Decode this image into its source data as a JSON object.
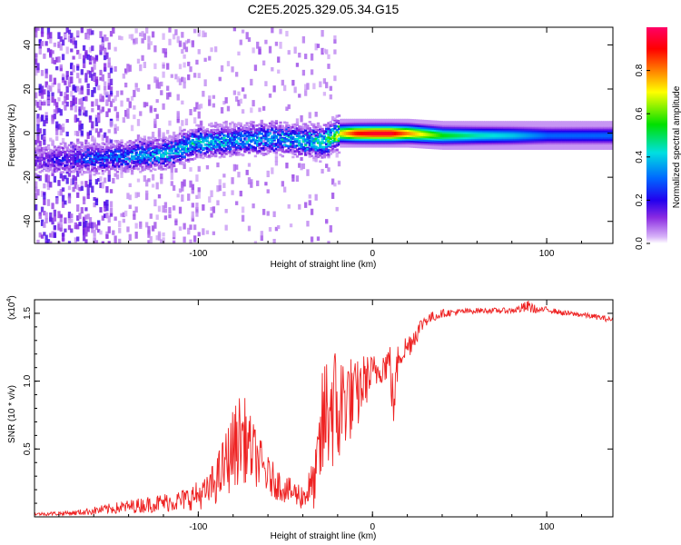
{
  "title": "C2E5.2025.329.05.34.G15",
  "colors": {
    "snr_line": "#ee2222",
    "frame": "#000000",
    "colorbar_stops": [
      "#ffffff",
      "#d8b4f8",
      "#8a2be2",
      "#2200ee",
      "#0066ff",
      "#00e0e0",
      "#00e000",
      "#ffff00",
      "#ff6600",
      "#ff0000",
      "#ff0066"
    ]
  },
  "chart_data": [
    {
      "type": "heatmap",
      "name": "spectrogram",
      "title": "C2E5.2025.329.05.34.G15",
      "xlabel": "Height of straight line (km)",
      "ylabel": "Frequency (Hz)",
      "xlim": [
        -194,
        138
      ],
      "ylim": [
        -50,
        48
      ],
      "xticks": [
        -100,
        0,
        100
      ],
      "xtick_labels": [
        "-100",
        "0",
        "100"
      ],
      "yticks": [
        -40,
        -20,
        0,
        20,
        40
      ],
      "ytick_labels": [
        "-40",
        "-20",
        "0",
        "20",
        "40"
      ],
      "ridge": {
        "description_x": [
          -194,
          -160,
          -140,
          -120,
          -100,
          -80,
          -60,
          -40,
          -30,
          -20,
          -10,
          0,
          10,
          20,
          40,
          60,
          80,
          100,
          120,
          138
        ],
        "center_hz": [
          -12,
          -11,
          -10,
          -9,
          -4,
          -3,
          -2,
          -3,
          -4,
          0,
          0,
          0,
          0,
          0,
          -1,
          -1,
          -1,
          -1,
          -1,
          -1
        ],
        "peak_amplitude": [
          0.15,
          0.3,
          0.35,
          0.4,
          0.45,
          0.4,
          0.4,
          0.45,
          0.5,
          0.7,
          0.9,
          0.95,
          0.95,
          0.8,
          0.55,
          0.45,
          0.4,
          0.3,
          0.3,
          0.3
        ]
      },
      "colorbar": {
        "label": "Normalized spectral amplitude",
        "range": [
          0,
          1
        ],
        "ticks": [
          0.0,
          0.2,
          0.4,
          0.6,
          0.8
        ],
        "tick_labels": [
          "0.0",
          "0.2",
          "0.4",
          "0.6",
          "0.8"
        ]
      }
    },
    {
      "type": "line",
      "name": "snr",
      "xlabel": "Height of straight line (km)",
      "ylabel": "SNR (10 * v/v)",
      "y_multiplier_base": "(x10",
      "y_multiplier_exp": "4",
      "y_multiplier_close": ")",
      "xlim": [
        -194,
        138
      ],
      "ylim": [
        0,
        1.6
      ],
      "xticks": [
        -100,
        0,
        100
      ],
      "xtick_labels": [
        "-100",
        "0",
        "100"
      ],
      "yticks": [
        0.5,
        1.0,
        1.5
      ],
      "ytick_labels": [
        "0.5",
        "1.0",
        "1.5"
      ],
      "series": [
        {
          "name": "SNR",
          "x": [
            -194,
            -170,
            -150,
            -130,
            -110,
            -95,
            -88,
            -80,
            -75,
            -70,
            -60,
            -50,
            -40,
            -33,
            -28,
            -24,
            -20,
            -15,
            -10,
            -5,
            0,
            5,
            10,
            12,
            15,
            20,
            25,
            30,
            40,
            60,
            80,
            90,
            95,
            100,
            110,
            120,
            130,
            138
          ],
          "y": [
            0.02,
            0.03,
            0.06,
            0.09,
            0.12,
            0.18,
            0.3,
            0.5,
            0.6,
            0.5,
            0.3,
            0.2,
            0.15,
            0.25,
            0.7,
            0.85,
            0.75,
            0.9,
            0.85,
            1.0,
            1.05,
            1.1,
            1.15,
            0.8,
            1.2,
            1.25,
            1.35,
            1.45,
            1.5,
            1.52,
            1.52,
            1.55,
            1.52,
            1.53,
            1.5,
            1.49,
            1.47,
            1.45
          ],
          "noise": [
            0.01,
            0.02,
            0.04,
            0.06,
            0.08,
            0.12,
            0.2,
            0.3,
            0.35,
            0.25,
            0.15,
            0.1,
            0.1,
            0.2,
            0.5,
            0.5,
            0.5,
            0.35,
            0.3,
            0.2,
            0.15,
            0.12,
            0.15,
            0.2,
            0.12,
            0.1,
            0.08,
            0.05,
            0.03,
            0.02,
            0.02,
            0.05,
            0.02,
            0.02,
            0.02,
            0.02,
            0.02,
            0.02
          ]
        }
      ]
    }
  ]
}
